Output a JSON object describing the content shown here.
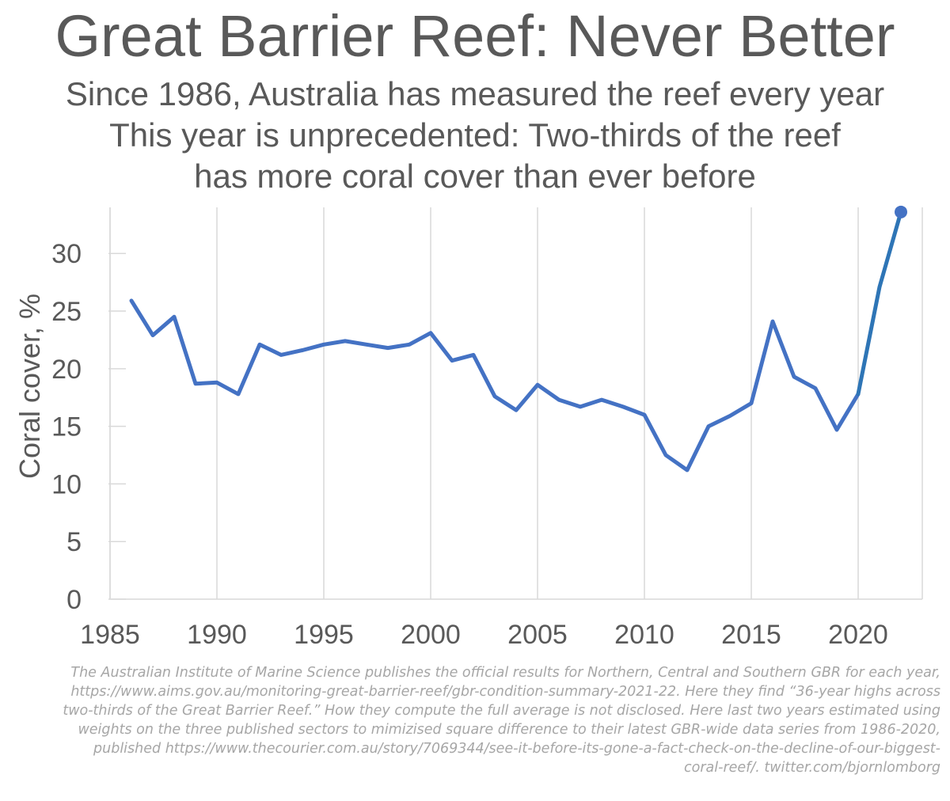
{
  "title": "Great Barrier Reef: Never Better",
  "subtitle_lines": [
    "Since 1986, Australia has measured the reef every year",
    "This year is unprecedented: Two-thirds of the reef",
    "has more coral cover than ever before"
  ],
  "footnote_lines": [
    "The Australian Institute of Marine Science publishes the official results for Northern, Central and Southern GBR for each year,",
    "https://www.aims.gov.au/monitoring-great-barrier-reef/gbr-condition-summary-2021-22. Here they find “36-year highs across",
    "two-thirds of the Great Barrier Reef.” How they compute the full average is not disclosed. Here last two years estimated using",
    "weights on the three published sectors to mimizised square difference to their latest GBR-wide data series from 1986-2020,",
    "published https://www.thecourier.com.au/story/7069344/see-it-before-its-gone-a-fact-check-on-the-decline-of-our-biggest-",
    "coral-reef/. twitter.com/bjornlomborg"
  ],
  "colors": {
    "main_series": "#4472c4",
    "estimate_series": "#2e75b6",
    "gridline": "#d9d9d9",
    "text": "#595959",
    "footnote": "#a6a6a6"
  },
  "chart_data": {
    "type": "line",
    "title": "",
    "xlabel": "",
    "ylabel": "Coral cover, %",
    "xlim": [
      1985,
      2023
    ],
    "ylim": [
      0,
      34
    ],
    "x_ticks": [
      1985,
      1990,
      1995,
      2000,
      2005,
      2010,
      2015,
      2020
    ],
    "y_ticks": [
      0,
      5,
      10,
      15,
      20,
      25,
      30
    ],
    "grid": "vertical",
    "legend": "none",
    "series": [
      {
        "x": [
          1986,
          1987,
          1988,
          1989,
          1990,
          1991,
          1992,
          1993,
          1994,
          1995,
          1996,
          1997,
          1998,
          1999,
          2000,
          2001,
          2002,
          2003,
          2004,
          2005,
          2006,
          2007,
          2008,
          2009,
          2010,
          2011,
          2012,
          2013,
          2014,
          2015,
          2016,
          2017,
          2018,
          2019,
          2020
        ],
        "y": [
          25.9,
          22.9,
          24.5,
          18.7,
          18.8,
          17.8,
          22.1,
          21.2,
          21.6,
          22.1,
          22.4,
          22.1,
          21.8,
          22.1,
          23.1,
          20.7,
          21.2,
          17.6,
          16.4,
          18.6,
          17.3,
          16.7,
          17.3,
          16.7,
          16.0,
          12.5,
          11.2,
          15.0,
          15.9,
          17.0,
          24.1,
          19.3,
          18.3,
          14.7,
          17.8
        ]
      },
      {
        "x": [
          2020,
          2021,
          2022
        ],
        "y": [
          17.8,
          27.1,
          33.6
        ]
      }
    ]
  }
}
